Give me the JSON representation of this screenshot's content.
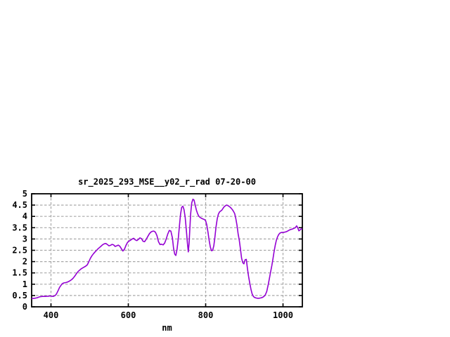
{
  "page": {
    "background": "#ffffff"
  },
  "chart_data": {
    "type": "line",
    "title": "sr_2025_293_MSE__y02_r_rad 07-20-00",
    "xlabel": "nm",
    "ylabel": "",
    "xlim": [
      350,
      1050
    ],
    "ylim": [
      0,
      5
    ],
    "x_tick_values": [
      400,
      600,
      800,
      1000
    ],
    "x_tick_labels": [
      "400",
      "600",
      "800",
      "1000"
    ],
    "y_tick_values": [
      0,
      0.5,
      1,
      1.5,
      2,
      2.5,
      3,
      3.5,
      4,
      4.5,
      5
    ],
    "y_tick_labels": [
      "0",
      "0.5",
      "1",
      "1.5",
      "2",
      "2.5",
      "3",
      "3.5",
      "4",
      "4.5",
      "5"
    ],
    "grid": true,
    "legend_position": "none",
    "line_color": "#9400d3",
    "grid_color": "#a8a8a8",
    "frame_color": "#000000",
    "series": [
      {
        "name": "sr_2025_293_MSE__y02_r_rad",
        "x": [
          350,
          354,
          358,
          362,
          366,
          370,
          374,
          378,
          382,
          386,
          390,
          394,
          398,
          402,
          406,
          410,
          413,
          416,
          419,
          422,
          425,
          428,
          431,
          434,
          438,
          442,
          446,
          450,
          454,
          458,
          462,
          466,
          470,
          474,
          478,
          482,
          486,
          490,
          494,
          498,
          502,
          506,
          510,
          514,
          518,
          522,
          526,
          530,
          534,
          538,
          542,
          546,
          550,
          554,
          558,
          562,
          566,
          570,
          574,
          578,
          582,
          586,
          590,
          594,
          598,
          602,
          606,
          610,
          614,
          618,
          622,
          626,
          630,
          634,
          638,
          642,
          646,
          650,
          654,
          658,
          662,
          666,
          670,
          674,
          678,
          682,
          686,
          690,
          694,
          698,
          702,
          706,
          710,
          714,
          717,
          720,
          723,
          726,
          729,
          732,
          735,
          738,
          741,
          744,
          747,
          750,
          753,
          755,
          757,
          759,
          761,
          764,
          767,
          770,
          773,
          776,
          779,
          782,
          785,
          788,
          791,
          794,
          797,
          800,
          803,
          806,
          809,
          812,
          815,
          818,
          821,
          824,
          827,
          830,
          833,
          836,
          839,
          842,
          845,
          848,
          851,
          854,
          857,
          860,
          863,
          866,
          869,
          872,
          875,
          878,
          881,
          884,
          887,
          890,
          893,
          896,
          899,
          902,
          905,
          908,
          911,
          914,
          917,
          920,
          923,
          926,
          930,
          934,
          938,
          942,
          946,
          950,
          954,
          958,
          962,
          965,
          968,
          971,
          974,
          977,
          980,
          983,
          986,
          989,
          992,
          996,
          1000,
          1004,
          1008,
          1012,
          1016,
          1020,
          1024,
          1028,
          1032,
          1035,
          1038,
          1041,
          1044,
          1047,
          1050
        ],
        "y": [
          0.36,
          0.37,
          0.38,
          0.39,
          0.41,
          0.44,
          0.45,
          0.46,
          0.46,
          0.46,
          0.47,
          0.47,
          0.48,
          0.47,
          0.46,
          0.49,
          0.54,
          0.63,
          0.74,
          0.85,
          0.93,
          1.0,
          1.04,
          1.06,
          1.07,
          1.09,
          1.12,
          1.16,
          1.21,
          1.28,
          1.37,
          1.47,
          1.56,
          1.62,
          1.68,
          1.72,
          1.76,
          1.8,
          1.86,
          2.0,
          2.15,
          2.26,
          2.35,
          2.43,
          2.5,
          2.57,
          2.63,
          2.69,
          2.75,
          2.79,
          2.8,
          2.75,
          2.7,
          2.72,
          2.76,
          2.74,
          2.67,
          2.7,
          2.73,
          2.68,
          2.57,
          2.47,
          2.55,
          2.72,
          2.85,
          2.91,
          2.95,
          3.0,
          3.03,
          2.96,
          2.93,
          2.98,
          3.05,
          3.02,
          2.9,
          2.88,
          2.98,
          3.1,
          3.22,
          3.3,
          3.34,
          3.35,
          3.3,
          3.15,
          2.88,
          2.75,
          2.77,
          2.74,
          2.82,
          3.0,
          3.22,
          3.38,
          3.35,
          3.05,
          2.6,
          2.33,
          2.27,
          2.55,
          3.0,
          3.55,
          4.1,
          4.4,
          4.45,
          4.3,
          3.95,
          3.4,
          2.8,
          2.43,
          2.8,
          3.45,
          4.1,
          4.6,
          4.76,
          4.72,
          4.5,
          4.28,
          4.12,
          4.02,
          3.96,
          3.93,
          3.9,
          3.88,
          3.86,
          3.8,
          3.62,
          3.3,
          2.95,
          2.65,
          2.48,
          2.5,
          2.7,
          3.1,
          3.55,
          3.9,
          4.1,
          4.2,
          4.24,
          4.28,
          4.36,
          4.43,
          4.47,
          4.5,
          4.48,
          4.45,
          4.41,
          4.36,
          4.3,
          4.22,
          4.12,
          3.9,
          3.6,
          3.22,
          2.95,
          2.55,
          2.15,
          1.95,
          1.9,
          2.08,
          2.1,
          1.7,
          1.35,
          1.05,
          0.78,
          0.58,
          0.47,
          0.42,
          0.39,
          0.38,
          0.38,
          0.39,
          0.41,
          0.45,
          0.52,
          0.68,
          1.0,
          1.28,
          1.55,
          1.82,
          2.12,
          2.44,
          2.73,
          2.95,
          3.1,
          3.2,
          3.26,
          3.29,
          3.29,
          3.3,
          3.32,
          3.35,
          3.39,
          3.42,
          3.44,
          3.47,
          3.5,
          3.58,
          3.5,
          3.36,
          3.4,
          3.44,
          3.45
        ]
      }
    ]
  }
}
